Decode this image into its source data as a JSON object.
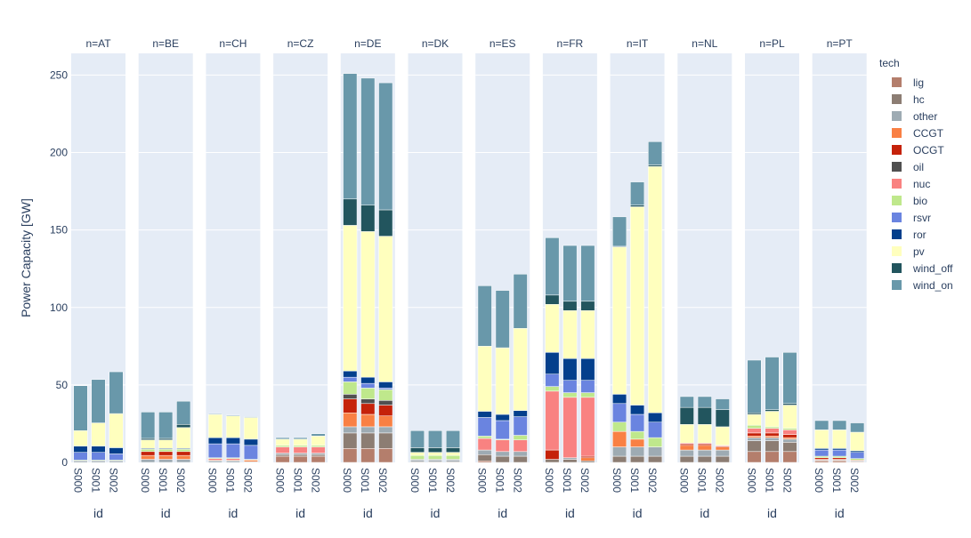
{
  "chart_data": {
    "type": "bar",
    "stacked": true,
    "facet_prefix": "n=",
    "ylabel": "Power Capacity [GW]",
    "xlabel": "id",
    "ylim": [
      0,
      264
    ],
    "yticks": [
      0,
      50,
      100,
      150,
      200,
      250
    ],
    "grid": true,
    "legend_title": "tech",
    "legend_position": "right",
    "categories": [
      "S000",
      "S001",
      "S002"
    ],
    "technologies": [
      "lig",
      "hc",
      "other",
      "CCGT",
      "OCGT",
      "oil",
      "nuc",
      "bio",
      "rsvr",
      "ror",
      "pv",
      "wind_off",
      "wind_on"
    ],
    "colors": {
      "lig": "#b47e6c",
      "hc": "#8c7d73",
      "other": "#9eabb3",
      "CCGT": "#f98044",
      "OCGT": "#c5220a",
      "oil": "#505050",
      "nuc": "#f98281",
      "bio": "#bfe88c",
      "rsvr": "#6a84e0",
      "ror": "#033f8c",
      "pv": "#ffffbe",
      "wind_off": "#22555e",
      "wind_on": "#6998aa"
    },
    "facets": [
      {
        "name": "AT",
        "series": {
          "lig": [
            0,
            0,
            0
          ],
          "hc": [
            0,
            0,
            0
          ],
          "other": [
            1,
            1,
            1
          ],
          "CCGT": [
            0,
            0,
            0
          ],
          "OCGT": [
            0,
            0,
            0
          ],
          "oil": [
            0,
            0,
            0
          ],
          "nuc": [
            0,
            0,
            0
          ],
          "bio": [
            0.5,
            0.5,
            0.5
          ],
          "rsvr": [
            5,
            5,
            4
          ],
          "ror": [
            4,
            4,
            4
          ],
          "pv": [
            10,
            15,
            22
          ],
          "wind_off": [
            0,
            0,
            0
          ],
          "wind_on": [
            29,
            28,
            27
          ]
        }
      },
      {
        "name": "BE",
        "series": {
          "lig": [
            0,
            0,
            0
          ],
          "hc": [
            0,
            0,
            0
          ],
          "other": [
            2,
            2,
            2
          ],
          "CCGT": [
            2.5,
            2.5,
            2.5
          ],
          "OCGT": [
            2.5,
            2.5,
            2.5
          ],
          "oil": [
            0,
            0,
            0
          ],
          "nuc": [
            0,
            0,
            0
          ],
          "bio": [
            1.5,
            1.5,
            1.5
          ],
          "rsvr": [
            0,
            0,
            0
          ],
          "ror": [
            0.5,
            0.5,
            0.5
          ],
          "pv": [
            5.5,
            5.5,
            13.5
          ],
          "wind_off": [
            1,
            1,
            2
          ],
          "wind_on": [
            17,
            17,
            15
          ]
        }
      },
      {
        "name": "CH",
        "series": {
          "lig": [
            0,
            0,
            0
          ],
          "hc": [
            0,
            0,
            0
          ],
          "other": [
            1,
            1,
            0.5
          ],
          "CCGT": [
            0.5,
            0.5,
            1
          ],
          "OCGT": [
            0,
            0,
            0
          ],
          "oil": [
            0,
            0,
            0
          ],
          "nuc": [
            1,
            1,
            0
          ],
          "bio": [
            0.5,
            0.5,
            0.5
          ],
          "rsvr": [
            9,
            9,
            9
          ],
          "ror": [
            4,
            4,
            4
          ],
          "pv": [
            15,
            14,
            14
          ],
          "wind_off": [
            0,
            0,
            0
          ],
          "wind_on": [
            0.5,
            0.5,
            0.5
          ]
        }
      },
      {
        "name": "CZ",
        "series": {
          "lig": [
            4,
            4,
            4
          ],
          "hc": [
            1,
            1,
            1
          ],
          "other": [
            1,
            1,
            1
          ],
          "CCGT": [
            0,
            0,
            0
          ],
          "OCGT": [
            0,
            0,
            0
          ],
          "oil": [
            0,
            0,
            0
          ],
          "nuc": [
            4,
            4,
            4
          ],
          "bio": [
            1,
            1,
            1
          ],
          "rsvr": [
            0,
            0,
            0
          ],
          "ror": [
            0,
            0,
            0
          ],
          "pv": [
            4,
            4,
            6
          ],
          "wind_off": [
            0,
            0,
            0
          ],
          "wind_on": [
            1,
            1,
            1.5
          ]
        }
      },
      {
        "name": "DE",
        "series": {
          "lig": [
            9,
            9,
            9
          ],
          "hc": [
            10,
            10,
            10
          ],
          "other": [
            4,
            4,
            4
          ],
          "CCGT": [
            9,
            8,
            7
          ],
          "OCGT": [
            9,
            7,
            7
          ],
          "oil": [
            3,
            3,
            3
          ],
          "nuc": [
            0,
            0,
            0
          ],
          "bio": [
            8,
            7,
            7
          ],
          "rsvr": [
            3,
            3,
            1
          ],
          "ror": [
            4,
            4,
            4
          ],
          "pv": [
            94,
            94,
            94
          ],
          "wind_off": [
            17,
            17,
            17
          ],
          "wind_on": [
            81,
            82,
            82
          ]
        }
      },
      {
        "name": "DK",
        "series": {
          "lig": [
            0,
            0,
            0
          ],
          "hc": [
            0.5,
            0.5,
            0.5
          ],
          "other": [
            1,
            1,
            1
          ],
          "CCGT": [
            0,
            0,
            0
          ],
          "OCGT": [
            0,
            0,
            0
          ],
          "oil": [
            0.5,
            0.5,
            0.5
          ],
          "nuc": [
            0,
            0,
            0
          ],
          "bio": [
            2.5,
            2.5,
            2.5
          ],
          "rsvr": [
            0,
            0,
            0
          ],
          "ror": [
            0,
            0,
            0
          ],
          "pv": [
            2,
            2,
            2
          ],
          "wind_off": [
            3,
            3,
            3
          ],
          "wind_on": [
            11,
            11,
            11
          ]
        }
      },
      {
        "name": "ES",
        "series": {
          "lig": [
            1,
            0,
            0
          ],
          "hc": [
            4,
            4,
            4
          ],
          "other": [
            3,
            3,
            3
          ],
          "CCGT": [
            0,
            0,
            0
          ],
          "OCGT": [
            0,
            0,
            0
          ],
          "oil": [
            0,
            0,
            0
          ],
          "nuc": [
            7.5,
            7.5,
            7.5
          ],
          "bio": [
            1.5,
            0.5,
            3
          ],
          "rsvr": [
            12,
            12,
            12
          ],
          "ror": [
            4,
            4,
            4
          ],
          "pv": [
            42,
            43,
            53
          ],
          "wind_off": [
            0,
            0,
            0
          ],
          "wind_on": [
            39,
            37,
            35
          ]
        }
      },
      {
        "name": "FR",
        "series": {
          "lig": [
            0,
            0,
            0
          ],
          "hc": [
            2,
            2,
            1
          ],
          "other": [
            0,
            1,
            0
          ],
          "CCGT": [
            0,
            0,
            2
          ],
          "OCGT": [
            6,
            0,
            1
          ],
          "oil": [
            0,
            0,
            0
          ],
          "nuc": [
            38,
            39,
            38
          ],
          "bio": [
            3,
            3,
            3
          ],
          "rsvr": [
            8,
            8,
            8
          ],
          "ror": [
            14,
            14,
            14
          ],
          "pv": [
            31,
            31,
            31
          ],
          "wind_off": [
            6,
            6,
            6
          ],
          "wind_on": [
            37,
            36,
            36
          ]
        }
      },
      {
        "name": "IT",
        "series": {
          "lig": [
            0,
            0,
            0
          ],
          "hc": [
            4,
            4,
            4
          ],
          "other": [
            6,
            6,
            6
          ],
          "CCGT": [
            10,
            5,
            0
          ],
          "OCGT": [
            0,
            0,
            0
          ],
          "oil": [
            0,
            0,
            0
          ],
          "nuc": [
            0,
            0,
            0
          ],
          "bio": [
            6,
            5,
            6
          ],
          "rsvr": [
            12,
            11,
            10
          ],
          "ror": [
            6,
            6,
            6
          ],
          "pv": [
            95,
            128,
            159
          ],
          "wind_off": [
            0.5,
            1,
            1
          ],
          "wind_on": [
            19,
            15,
            15
          ]
        }
      },
      {
        "name": "NL",
        "series": {
          "lig": [
            0,
            0,
            0
          ],
          "hc": [
            4,
            4,
            4
          ],
          "other": [
            4,
            4,
            4
          ],
          "CCGT": [
            3,
            3,
            2
          ],
          "OCGT": [
            1,
            1,
            0.5
          ],
          "oil": [
            0,
            0,
            0
          ],
          "nuc": [
            0.5,
            0.5,
            0.5
          ],
          "bio": [
            0,
            0,
            0
          ],
          "rsvr": [
            0,
            0,
            0
          ],
          "ror": [
            0,
            0,
            0
          ],
          "pv": [
            12,
            12,
            12
          ],
          "wind_off": [
            11,
            11,
            11
          ],
          "wind_on": [
            7,
            7,
            7
          ]
        }
      },
      {
        "name": "PL",
        "series": {
          "lig": [
            7,
            7,
            7
          ],
          "hc": [
            7,
            7,
            6
          ],
          "other": [
            2,
            2,
            2
          ],
          "CCGT": [
            1,
            1,
            1
          ],
          "OCGT": [
            2,
            2,
            2
          ],
          "oil": [
            0,
            0,
            0
          ],
          "nuc": [
            3,
            3,
            3
          ],
          "bio": [
            2,
            1,
            1
          ],
          "rsvr": [
            0,
            0,
            0
          ],
          "ror": [
            0,
            0,
            0
          ],
          "pv": [
            7,
            10,
            15
          ],
          "wind_off": [
            1,
            1,
            1
          ],
          "wind_on": [
            34,
            34,
            33
          ]
        }
      },
      {
        "name": "PT",
        "series": {
          "lig": [
            1,
            1,
            0.5
          ],
          "hc": [
            0,
            0,
            0
          ],
          "other": [
            0.5,
            0.5,
            0.5
          ],
          "CCGT": [
            0.5,
            0.5,
            0.5
          ],
          "OCGT": [
            1,
            1,
            0
          ],
          "oil": [
            0,
            0,
            0
          ],
          "nuc": [
            0,
            0,
            0
          ],
          "bio": [
            1,
            1,
            1
          ],
          "rsvr": [
            4,
            4,
            4
          ],
          "ror": [
            1,
            1,
            1
          ],
          "pv": [
            12,
            12,
            12
          ],
          "wind_off": [
            0,
            0,
            0
          ],
          "wind_on": [
            6,
            6,
            6
          ]
        }
      }
    ]
  }
}
